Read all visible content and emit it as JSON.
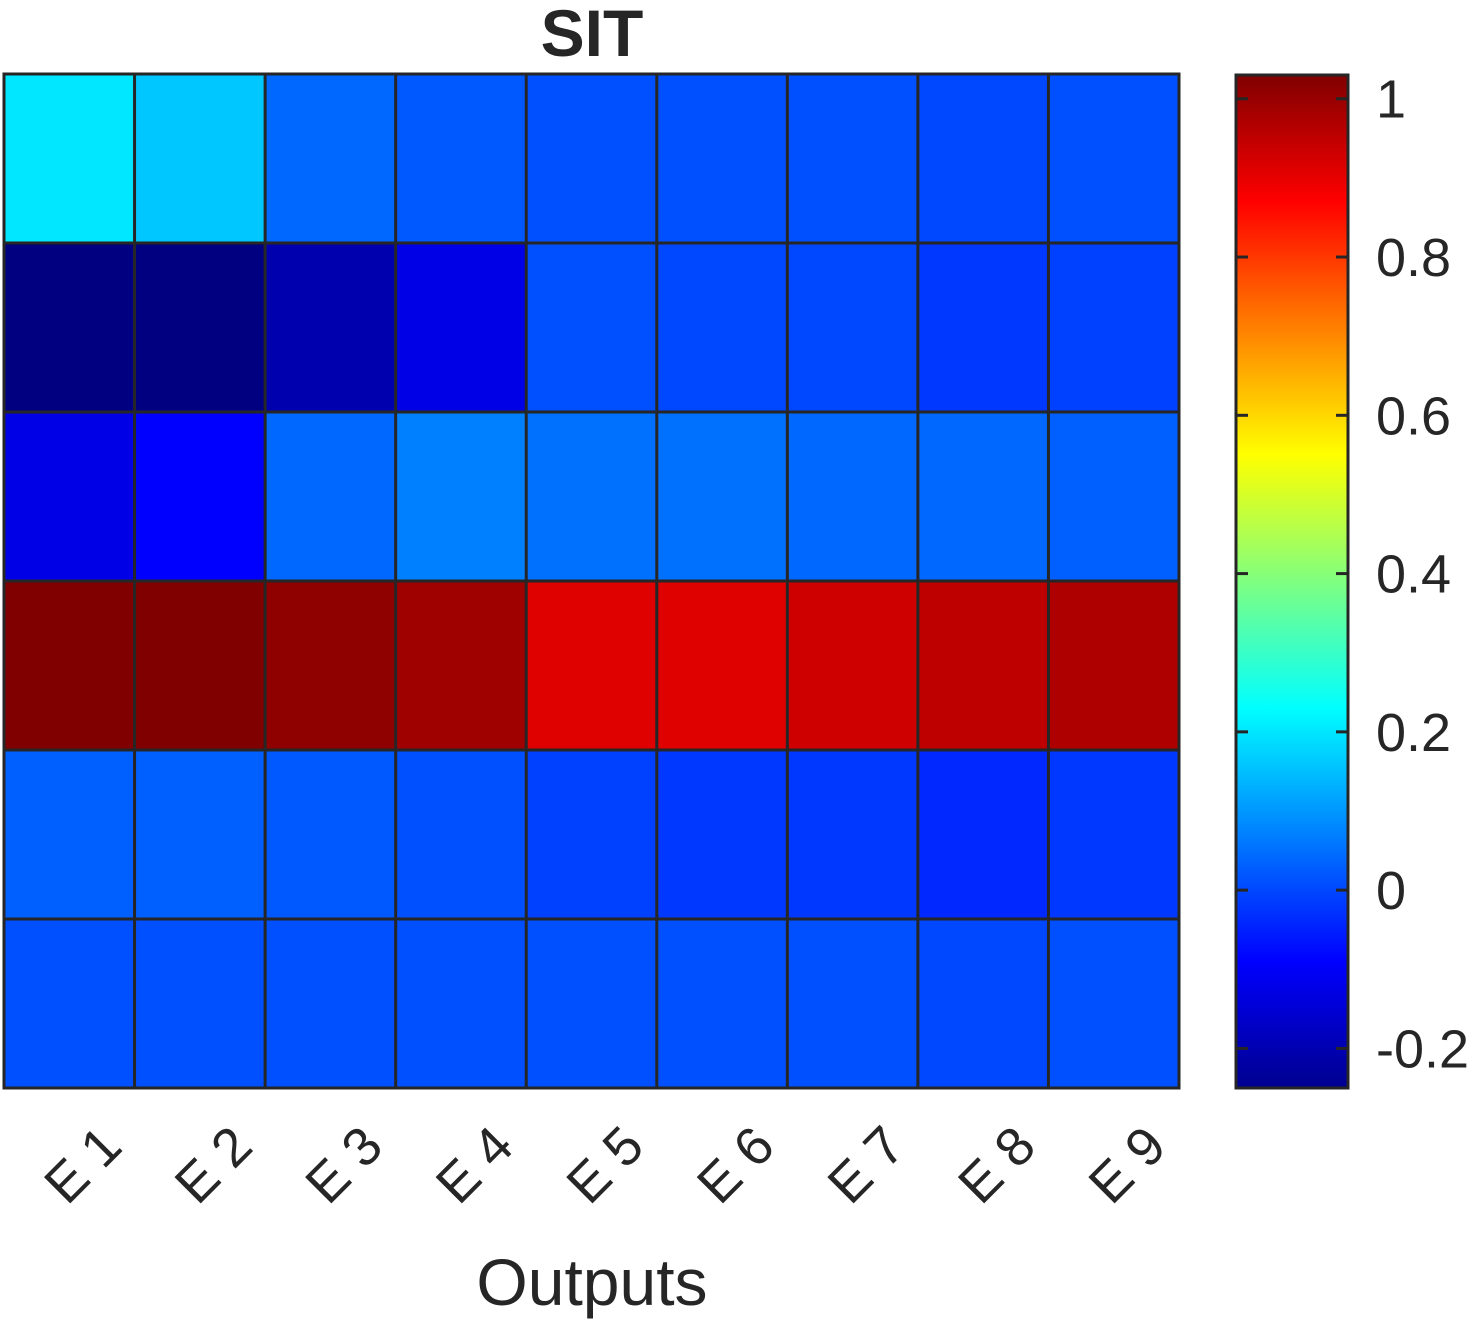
{
  "chart_data": {
    "type": "heatmap",
    "title": "SIT",
    "xlabel": "Outputs",
    "ylabel": "",
    "x_categories": [
      "E 1",
      "E 2",
      "E 3",
      "E 4",
      "E 5",
      "E 6",
      "E 7",
      "E 8",
      "E 9"
    ],
    "y_categories": [],
    "values": [
      [
        0.2,
        0.16,
        0.04,
        0.02,
        0.01,
        0.01,
        0.01,
        0.0,
        0.01
      ],
      [
        -0.25,
        -0.25,
        -0.19,
        -0.12,
        0.01,
        0.0,
        0.0,
        -0.02,
        -0.01
      ],
      [
        -0.12,
        -0.09,
        0.04,
        0.07,
        0.05,
        0.05,
        0.04,
        0.04,
        0.03
      ],
      [
        1.03,
        1.03,
        1.01,
        0.99,
        0.91,
        0.91,
        0.93,
        0.95,
        0.97
      ],
      [
        0.03,
        0.03,
        0.02,
        0.01,
        -0.01,
        -0.02,
        -0.02,
        -0.04,
        -0.02
      ],
      [
        0.01,
        0.01,
        0.01,
        0.01,
        0.01,
        0.01,
        0.01,
        0.0,
        0.01
      ]
    ],
    "colormap": "jet",
    "clim": [
      -0.25,
      1.03
    ],
    "colorbar": {
      "ticks": [
        -0.2,
        0,
        0.2,
        0.4,
        0.6,
        0.8,
        1
      ],
      "tick_labels": [
        "-0.2",
        "0",
        "0.2",
        "0.4",
        "0.6",
        "0.8",
        "1"
      ],
      "placement": "right"
    },
    "grid": true
  }
}
